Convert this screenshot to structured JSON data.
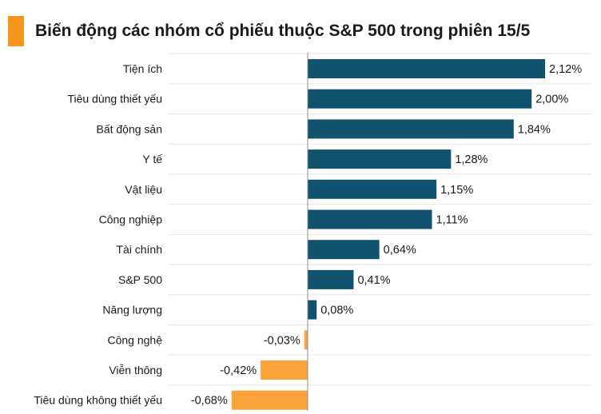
{
  "title": "Biến động các nhóm cổ phiếu thuộc S&P 500 trong phiên 15/5",
  "colors": {
    "accent": "#F7941D",
    "positive": "#11526E",
    "negative": "#F9A33A",
    "grid": "#E6E6E6",
    "axis": "#8C8C8C"
  },
  "chart_data": {
    "type": "bar",
    "orientation": "horizontal",
    "title": "Biến động các nhóm cổ phiếu thuộc S&P 500 trong phiên 15/5",
    "categories": [
      "Tiện ích",
      "Tiêu dùng thiết yếu",
      "Bất động sản",
      "Y tế",
      "Vật liệu",
      "Công nghiệp",
      "Tài chính",
      "S&P 500",
      "Năng lượng",
      "Công nghệ",
      "Viễn thông",
      "Tiêu dùng không thiết yếu"
    ],
    "values": [
      2.12,
      2.0,
      1.84,
      1.28,
      1.15,
      1.11,
      0.64,
      0.41,
      0.08,
      -0.03,
      -0.42,
      -0.68
    ],
    "value_labels": [
      "2,12%",
      "2,00%",
      "1,84%",
      "1,28%",
      "1,15%",
      "1,11%",
      "0,64%",
      "0,41%",
      "0,08%",
      "-0,03%",
      "-0,42%",
      "-0,68%"
    ],
    "unit": "%",
    "xlim": [
      -0.74,
      2.12
    ],
    "grid": true,
    "legend": "none"
  }
}
